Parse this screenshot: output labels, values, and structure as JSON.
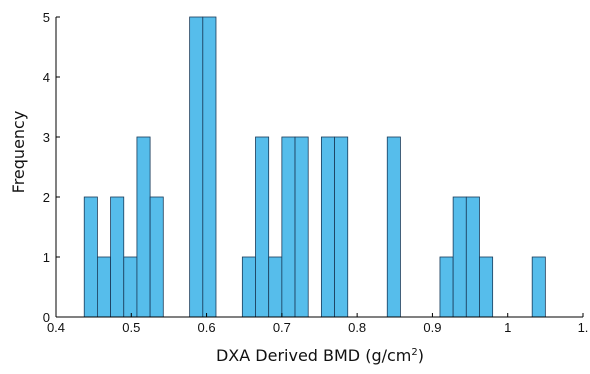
{
  "chart_data": {
    "type": "bar",
    "title": "",
    "xlabel": "DXA Derived BMD (g/cm",
    "xlabel_superscript": "2",
    "xlabel_suffix": ")",
    "ylabel": "Frequency",
    "xlim": [
      0.4,
      1.1
    ],
    "ylim": [
      0,
      5
    ],
    "xticks": [
      0.4,
      0.5,
      0.6,
      0.7,
      0.8,
      0.9,
      1,
      1.1
    ],
    "xtick_labels": [
      "0.4",
      "0.5",
      "0.6",
      "0.7",
      "0.8",
      "0.9",
      "1",
      "1."
    ],
    "yticks": [
      0,
      1,
      2,
      3,
      4,
      5
    ],
    "ytick_labels": [
      "0",
      "1",
      "2",
      "3",
      "4",
      "5"
    ],
    "bin_width": 0.0175,
    "bins": [
      {
        "x0": 0.4375,
        "x1": 0.455,
        "count": 2
      },
      {
        "x0": 0.455,
        "x1": 0.4725,
        "count": 1
      },
      {
        "x0": 0.4725,
        "x1": 0.49,
        "count": 2
      },
      {
        "x0": 0.49,
        "x1": 0.5075,
        "count": 1
      },
      {
        "x0": 0.5075,
        "x1": 0.525,
        "count": 3
      },
      {
        "x0": 0.525,
        "x1": 0.5425,
        "count": 2
      },
      {
        "x0": 0.5775,
        "x1": 0.595,
        "count": 5
      },
      {
        "x0": 0.595,
        "x1": 0.6125,
        "count": 5
      },
      {
        "x0": 0.6475,
        "x1": 0.665,
        "count": 1
      },
      {
        "x0": 0.665,
        "x1": 0.6825,
        "count": 3
      },
      {
        "x0": 0.6825,
        "x1": 0.7,
        "count": 1
      },
      {
        "x0": 0.7,
        "x1": 0.7175,
        "count": 3
      },
      {
        "x0": 0.7175,
        "x1": 0.735,
        "count": 3
      },
      {
        "x0": 0.7525,
        "x1": 0.77,
        "count": 3
      },
      {
        "x0": 0.77,
        "x1": 0.7875,
        "count": 3
      },
      {
        "x0": 0.84,
        "x1": 0.8575,
        "count": 3
      },
      {
        "x0": 0.91,
        "x1": 0.9275,
        "count": 1
      },
      {
        "x0": 0.9275,
        "x1": 0.945,
        "count": 2
      },
      {
        "x0": 0.945,
        "x1": 0.9625,
        "count": 2
      },
      {
        "x0": 0.9625,
        "x1": 0.98,
        "count": 1
      },
      {
        "x0": 1.0325,
        "x1": 1.05,
        "count": 1
      }
    ],
    "grid": false,
    "colors": {
      "bar_fill": "#56bdeb",
      "bar_edge": "#1a3b5a",
      "axis": "#000000"
    }
  }
}
